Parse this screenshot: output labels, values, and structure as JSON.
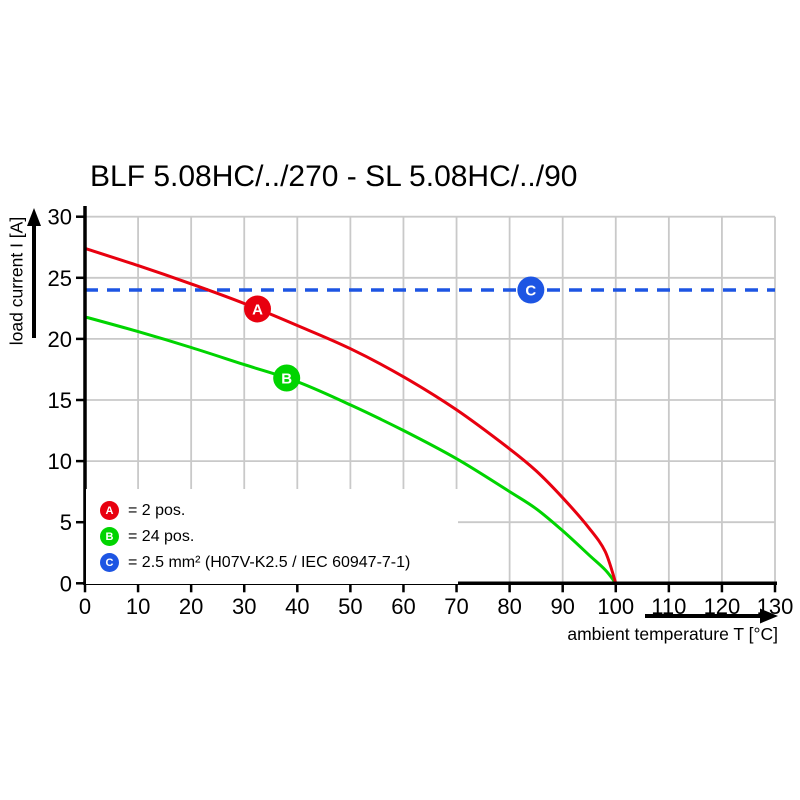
{
  "title": "BLF 5.08HC/../270 - SL 5.08HC/../90",
  "axes": {
    "y_label": "load current I [A]",
    "x_label": "ambient temperature T [°C]"
  },
  "legend": {
    "items": [
      {
        "letter": "A",
        "label": "= 2 pos.",
        "color": "#e8000f"
      },
      {
        "letter": "B",
        "label": "= 24 pos.",
        "color": "#00d400"
      },
      {
        "letter": "C",
        "label": "= 2.5 mm² (H07V-K2.5 / IEC 60947-7-1)",
        "color": "#1d55e3"
      }
    ]
  },
  "colors": {
    "red": "#e8000f",
    "green": "#00d400",
    "blue": "#1d55e3",
    "grid": "#c9c9c9",
    "axis": "#000000"
  },
  "chart_data": {
    "type": "line",
    "title": "BLF 5.08HC/../270 - SL 5.08HC/../90",
    "xlabel": "ambient temperature T [°C]",
    "ylabel": "load current I [A]",
    "xlim": [
      0,
      130
    ],
    "ylim": [
      0,
      30
    ],
    "x_ticks": [
      0,
      10,
      20,
      30,
      40,
      50,
      60,
      70,
      80,
      90,
      100,
      110,
      120,
      130
    ],
    "y_ticks": [
      0,
      5,
      10,
      15,
      20,
      25,
      30
    ],
    "grid": true,
    "legend_position": "inside-bottom-left",
    "series": [
      {
        "name": "A",
        "description": "2 pos.",
        "color": "#e8000f",
        "style": "solid",
        "points": [
          [
            0,
            27.4
          ],
          [
            10,
            26.0
          ],
          [
            20,
            24.5
          ],
          [
            30,
            22.9
          ],
          [
            40,
            21.1
          ],
          [
            50,
            19.2
          ],
          [
            60,
            16.9
          ],
          [
            70,
            14.2
          ],
          [
            80,
            11.0
          ],
          [
            85,
            9.2
          ],
          [
            90,
            7.0
          ],
          [
            95,
            4.5
          ],
          [
            98,
            2.6
          ],
          [
            100,
            0
          ]
        ]
      },
      {
        "name": "B",
        "description": "24 pos.",
        "color": "#00d400",
        "style": "solid",
        "points": [
          [
            0,
            21.8
          ],
          [
            10,
            20.6
          ],
          [
            20,
            19.3
          ],
          [
            30,
            17.9
          ],
          [
            40,
            16.5
          ],
          [
            50,
            14.6
          ],
          [
            60,
            12.5
          ],
          [
            70,
            10.2
          ],
          [
            80,
            7.5
          ],
          [
            85,
            6.1
          ],
          [
            90,
            4.3
          ],
          [
            95,
            2.3
          ],
          [
            98,
            1.1
          ],
          [
            100,
            0
          ]
        ]
      },
      {
        "name": "C",
        "description": "2.5 mm² (H07V-K2.5 / IEC 60947-7-1)",
        "color": "#1d55e3",
        "style": "dashed",
        "points": [
          [
            0,
            24
          ],
          [
            130,
            24
          ]
        ]
      }
    ],
    "markers": [
      {
        "letter": "A",
        "x": 32.5,
        "y": 22.45,
        "color": "#e8000f"
      },
      {
        "letter": "B",
        "x": 38,
        "y": 16.8,
        "color": "#00d400"
      },
      {
        "letter": "C",
        "x": 84,
        "y": 24,
        "color": "#1d55e3"
      }
    ]
  }
}
